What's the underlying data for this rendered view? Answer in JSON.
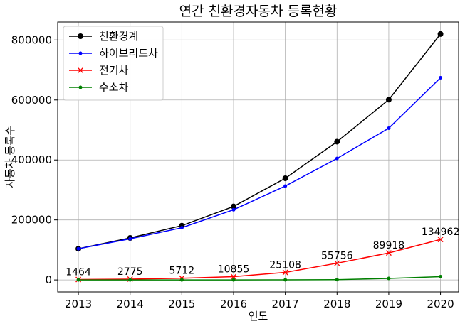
{
  "chart_data": {
    "type": "line",
    "title": "연간 친환경자동차 등록현황",
    "xlabel": "연도",
    "ylabel": "자동차 등록수",
    "x": [
      2013,
      2014,
      2015,
      2016,
      2017,
      2018,
      2019,
      2020
    ],
    "xlim": [
      2012.6,
      2020.35
    ],
    "ylim": [
      -40000,
      860000
    ],
    "yticks": [
      0,
      200000,
      400000,
      600000,
      800000
    ],
    "grid": true,
    "legend_position": "upper-left",
    "series": [
      {
        "name": "친환경계",
        "color": "#000000",
        "marker": "circle",
        "values": [
          104000,
          140000,
          181000,
          245000,
          339000,
          461000,
          601000,
          820000
        ]
      },
      {
        "name": "하이브리드차",
        "color": "#0000ff",
        "marker": "point",
        "values": [
          104000,
          137000,
          174000,
          234000,
          313000,
          405000,
          506000,
          674000
        ]
      },
      {
        "name": "전기차",
        "color": "#ff0000",
        "marker": "x",
        "values": [
          1464,
          2775,
          5712,
          10855,
          25108,
          55756,
          89918,
          134962
        ],
        "data_labels": [
          "1464",
          "2775",
          "5712",
          "10855",
          "25108",
          "55756",
          "89918",
          "134962"
        ]
      },
      {
        "name": "수소차",
        "color": "#008000",
        "marker": "point",
        "values": [
          0,
          0,
          29,
          87,
          177,
          893,
          5083,
          10906
        ]
      }
    ]
  }
}
